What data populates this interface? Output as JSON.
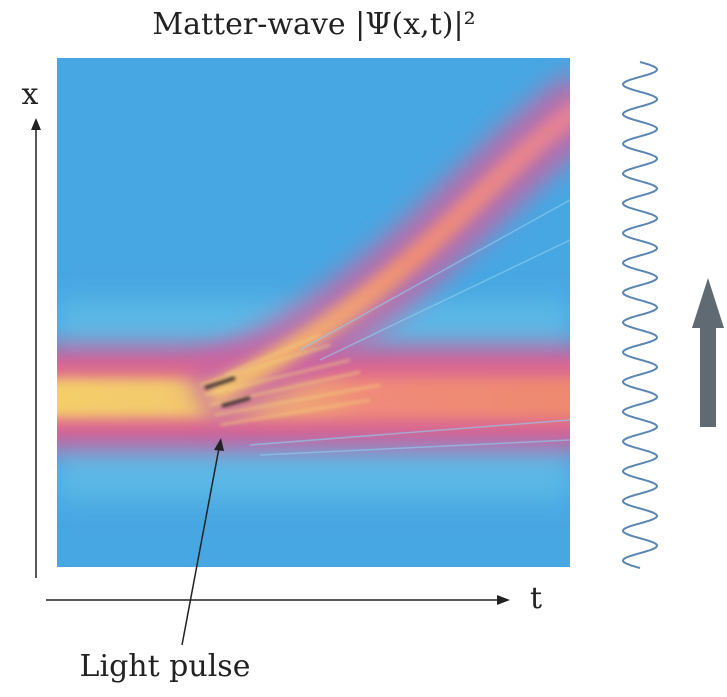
{
  "title": "Matter-wave |Ψ(x,t)|²",
  "x_axis_label": "t",
  "y_axis_label": "x",
  "annotation": "Light pulse"
}
